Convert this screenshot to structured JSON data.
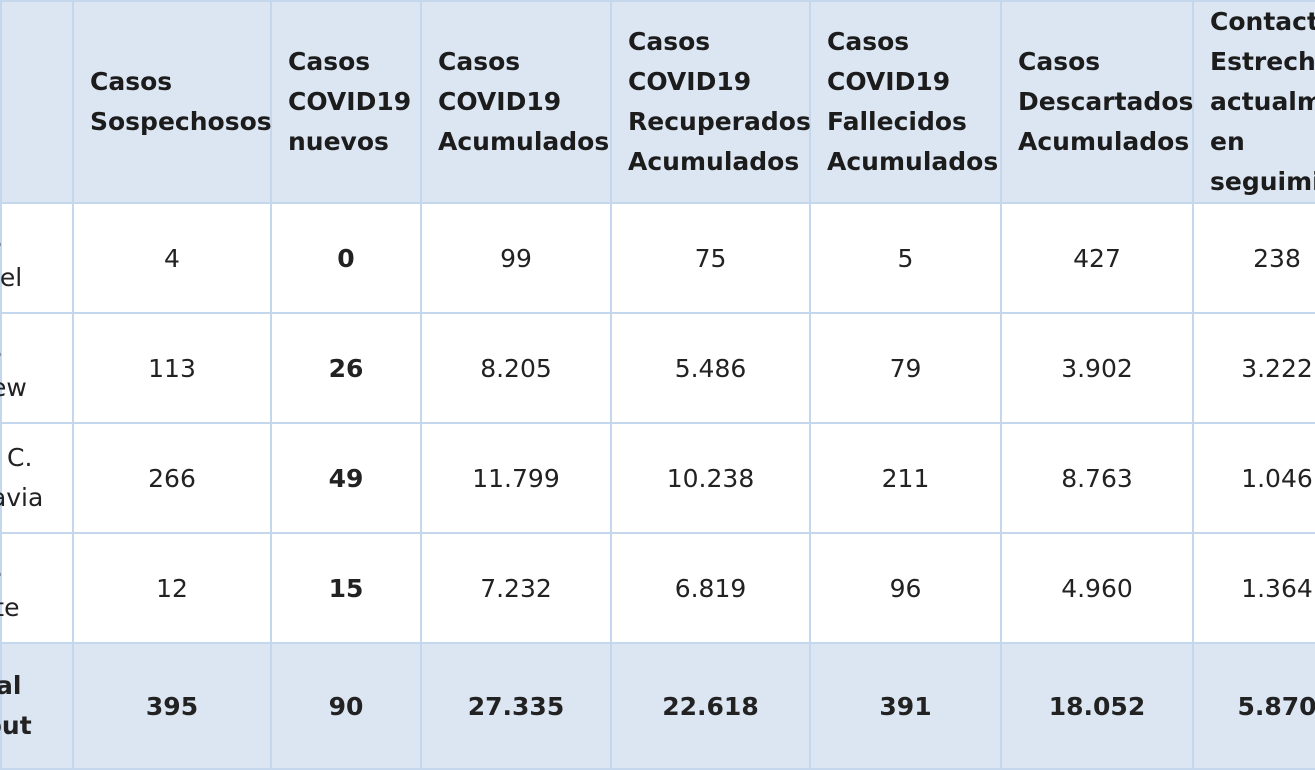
{
  "headers": [
    "",
    "Casos\nSospechosos",
    "Casos\nCOVID19\nnuevos",
    "Casos\nCOVID19\nAcumulados",
    "Casos\nCOVID19\nRecuperados\nAcumulados",
    "Casos\nCOVID19\nFallecidos\nAcumulados",
    "Casos\nDescartados\nAcumulados",
    "Contacto\nEstrecho\nactualme\nen\nseguimie"
  ],
  "rows": [
    {
      "label": "P.\nuel",
      "values": [
        "4",
        "0",
        "99",
        "75",
        "5",
        "427",
        "238"
      ]
    },
    {
      "label": "P.\nlew",
      "values": [
        "113",
        "26",
        "8.205",
        "5.486",
        "79",
        "3.902",
        "3.222"
      ]
    },
    {
      "label": "P C.\nlavia",
      "values": [
        "266",
        "49",
        "11.799",
        "10.238",
        "211",
        "8.763",
        "1.046"
      ]
    },
    {
      "label": "P.\nrte",
      "values": [
        "12",
        "15",
        "7.232",
        "6.819",
        "96",
        "4.960",
        "1.364"
      ]
    }
  ],
  "total": {
    "label": "tal\nbut",
    "values": [
      "395",
      "90",
      "27.335",
      "22.618",
      "391",
      "18.052",
      "5.870"
    ]
  }
}
